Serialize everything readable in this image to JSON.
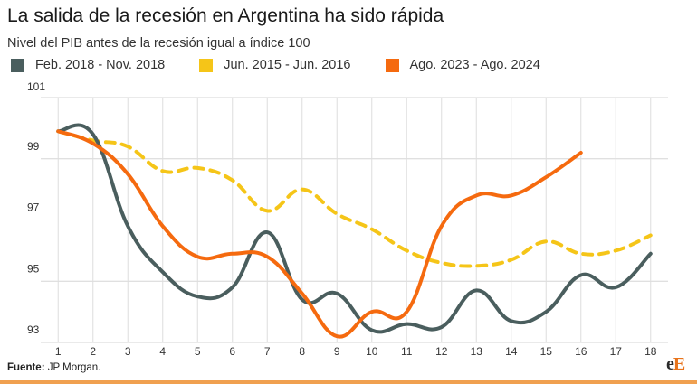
{
  "chart_data": {
    "type": "line",
    "title": "La salida de la recesión en Argentina ha sido rápida",
    "subtitle": "Nivel del PIB antes de la recesión igual a índice 100",
    "xlabel": "",
    "ylabel": "",
    "x": [
      1,
      2,
      3,
      4,
      5,
      6,
      7,
      8,
      9,
      10,
      11,
      12,
      13,
      14,
      15,
      16,
      17,
      18
    ],
    "ylim": [
      93,
      101
    ],
    "yticks": [
      "101",
      "99",
      "97",
      "95",
      "93"
    ],
    "ytick_values": [
      101,
      99,
      97,
      95,
      93
    ],
    "grid": true,
    "legend_position": "top-left",
    "series": [
      {
        "name": "Feb. 2018 - Nov. 2018",
        "color": "#4a5e5e",
        "dash": false,
        "x": [
          1,
          2,
          3,
          4,
          5,
          6,
          7,
          8,
          9,
          10,
          11,
          12,
          13,
          14,
          15,
          16,
          17,
          18
        ],
        "values": [
          99.9,
          99.8,
          96.8,
          95.3,
          94.5,
          94.8,
          96.6,
          94.4,
          94.6,
          93.4,
          93.6,
          93.5,
          94.7,
          93.7,
          94.0,
          95.2,
          94.8,
          95.9
        ]
      },
      {
        "name": "Jun. 2015 - Jun. 2016",
        "color": "#f5c518",
        "dash": true,
        "x": [
          1,
          2,
          3,
          4,
          5,
          6,
          7,
          8,
          9,
          10,
          11,
          12,
          13,
          14,
          15,
          16,
          17,
          18
        ],
        "values": [
          99.9,
          99.6,
          99.4,
          98.6,
          98.7,
          98.3,
          97.3,
          98.0,
          97.2,
          96.7,
          96.0,
          95.6,
          95.5,
          95.7,
          96.3,
          95.9,
          96.0,
          96.5
        ]
      },
      {
        "name": "Ago. 2023 - Ago. 2024",
        "color": "#f56a0f",
        "dash": false,
        "x": [
          1,
          2,
          3,
          4,
          5,
          6,
          7,
          8,
          9,
          10,
          11,
          12,
          13,
          14,
          15,
          16
        ],
        "values": [
          99.9,
          99.5,
          98.5,
          96.8,
          95.8,
          95.9,
          95.8,
          94.6,
          93.2,
          94.0,
          94.0,
          96.8,
          97.8,
          97.8,
          98.4,
          99.2
        ]
      }
    ]
  },
  "source": {
    "label": "Fuente:",
    "text": " JP Morgan."
  },
  "logo": {
    "text_a": "e",
    "text_b": "E"
  }
}
